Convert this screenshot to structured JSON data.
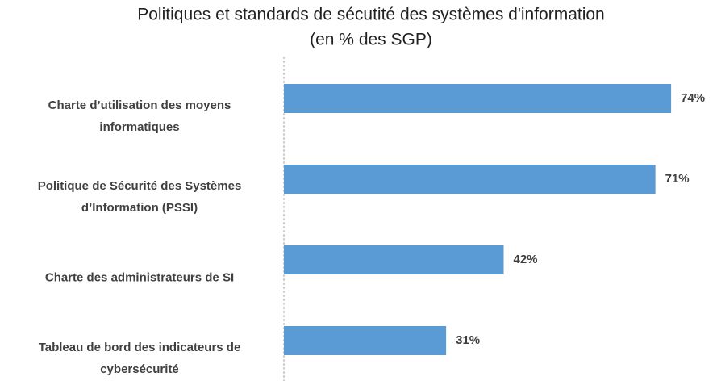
{
  "chart_data": {
    "type": "barh",
    "title": "Politiques et standards de sécutité des systèmes d'information",
    "subtitle": "(en % des SGP)",
    "categories": [
      "Charte d’utilisation des moyens informatiques",
      "Politique de Sécurité des Systèmes d’Information (PSSI)",
      "Charte des administrateurs de SI",
      "Tableau de bord des indicateurs de cybersécurité"
    ],
    "values": [
      74,
      71,
      42,
      31
    ],
    "value_labels": [
      "74%",
      "71%",
      "42%",
      "31%"
    ],
    "color": "#5b9bd5",
    "xlim": [
      0,
      82
    ]
  }
}
